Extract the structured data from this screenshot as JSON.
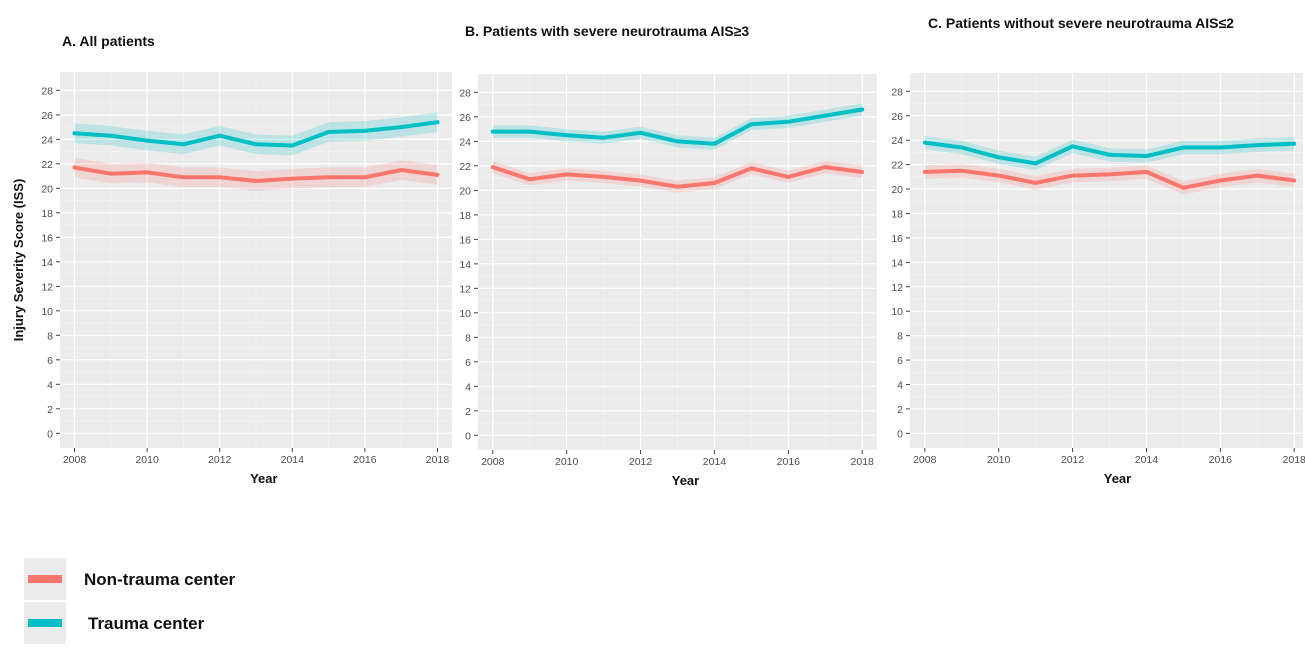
{
  "chart_data": {
    "type": "line",
    "ylabel": "Injury Severity Score (ISS)",
    "xlabel": "Year",
    "ylim": [
      -1.2,
      29.5
    ],
    "xlim": [
      2007.6,
      2018.4
    ],
    "yticks": [
      0,
      2,
      4,
      6,
      8,
      10,
      12,
      14,
      16,
      18,
      20,
      22,
      24,
      26,
      28
    ],
    "xticks": [
      2008,
      2010,
      2012,
      2014,
      2016,
      2018
    ],
    "grid": true,
    "legend_position": "bottom-left",
    "x": [
      2008,
      2009,
      2010,
      2011,
      2012,
      2013,
      2014,
      2015,
      2016,
      2017,
      2018
    ],
    "series_colors": {
      "Non-trauma center": "#f8766d",
      "Trauma center": "#00bfc4"
    },
    "panels": [
      {
        "title": "A. All patients",
        "series": [
          {
            "name": "Non-trauma center",
            "values": [
              21.7,
              21.2,
              21.3,
              20.9,
              20.9,
              20.6,
              20.8,
              20.9,
              20.9,
              21.5,
              21.1
            ]
          },
          {
            "name": "Trauma center",
            "values": [
              24.5,
              24.3,
              23.9,
              23.6,
              24.3,
              23.6,
              23.5,
              24.6,
              24.7,
              25.0,
              25.4
            ]
          }
        ]
      },
      {
        "title": "B. Patients with severe neurotrauma AIS≥3",
        "series": [
          {
            "name": "Non-trauma center",
            "values": [
              21.9,
              20.9,
              21.3,
              21.1,
              20.8,
              20.3,
              20.6,
              21.8,
              21.1,
              21.9,
              21.5
            ]
          },
          {
            "name": "Trauma center",
            "values": [
              24.8,
              24.8,
              24.5,
              24.3,
              24.7,
              24.0,
              23.8,
              25.4,
              25.6,
              26.1,
              26.6
            ]
          }
        ]
      },
      {
        "title": "C. Patients without severe neurotrauma AIS≤2",
        "series": [
          {
            "name": "Non-trauma center",
            "values": [
              21.4,
              21.5,
              21.1,
              20.5,
              21.1,
              21.2,
              21.4,
              20.1,
              20.7,
              21.1,
              20.7
            ]
          },
          {
            "name": "Trauma center",
            "values": [
              23.8,
              23.4,
              22.6,
              22.1,
              23.5,
              22.8,
              22.7,
              23.4,
              23.4,
              23.6,
              23.7
            ]
          }
        ]
      }
    ]
  },
  "legend": {
    "items": [
      {
        "label": "Non-trauma center",
        "color": "#f8766d"
      },
      {
        "label": "Trauma center",
        "color": "#00bfc4"
      }
    ]
  }
}
